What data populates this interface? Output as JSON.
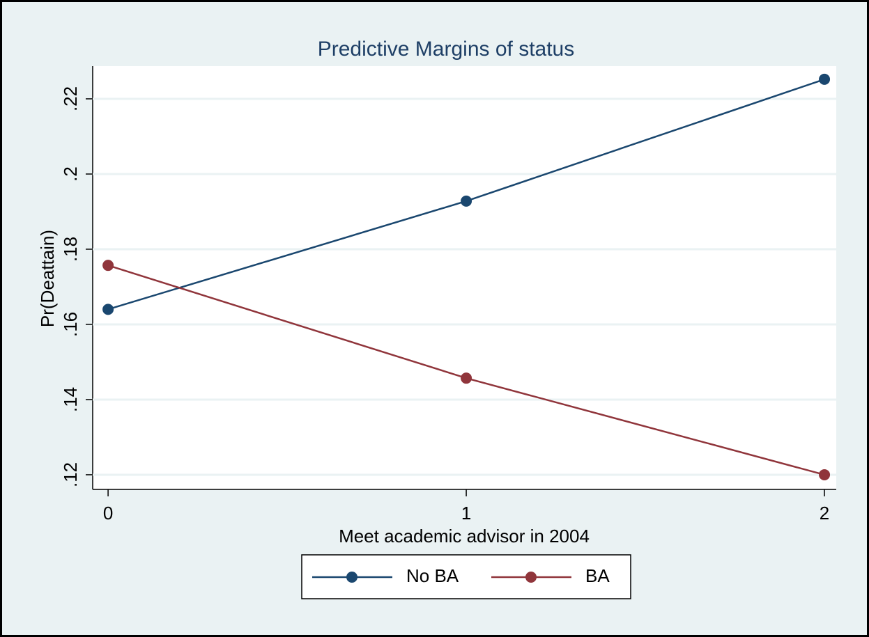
{
  "chart_data": {
    "type": "line",
    "title": "Predictive Margins of status",
    "x_label": "Meet academic advisor in 2004",
    "y_label": "Pr(Deattain)",
    "x": [
      0,
      1,
      2
    ],
    "series": [
      {
        "name": "No BA",
        "color": "#1a476f",
        "values": [
          0.164,
          0.1928,
          0.2252
        ]
      },
      {
        "name": "BA",
        "color": "#90353b",
        "values": [
          0.1757,
          0.1457,
          0.12
        ]
      }
    ],
    "xlim": [
      -0.043,
      2.033
    ],
    "xticks": [
      0,
      1,
      2
    ],
    "ylim": [
      0.1161,
      0.2287
    ],
    "yticks": [
      {
        "value": 0.12,
        "label": ".12"
      },
      {
        "value": 0.14,
        "label": ".14"
      },
      {
        "value": 0.16,
        "label": ".16"
      },
      {
        "value": 0.18,
        "label": ".18"
      },
      {
        "value": 0.2,
        "label": ".2"
      },
      {
        "value": 0.22,
        "label": ".22"
      }
    ],
    "grid": true
  }
}
